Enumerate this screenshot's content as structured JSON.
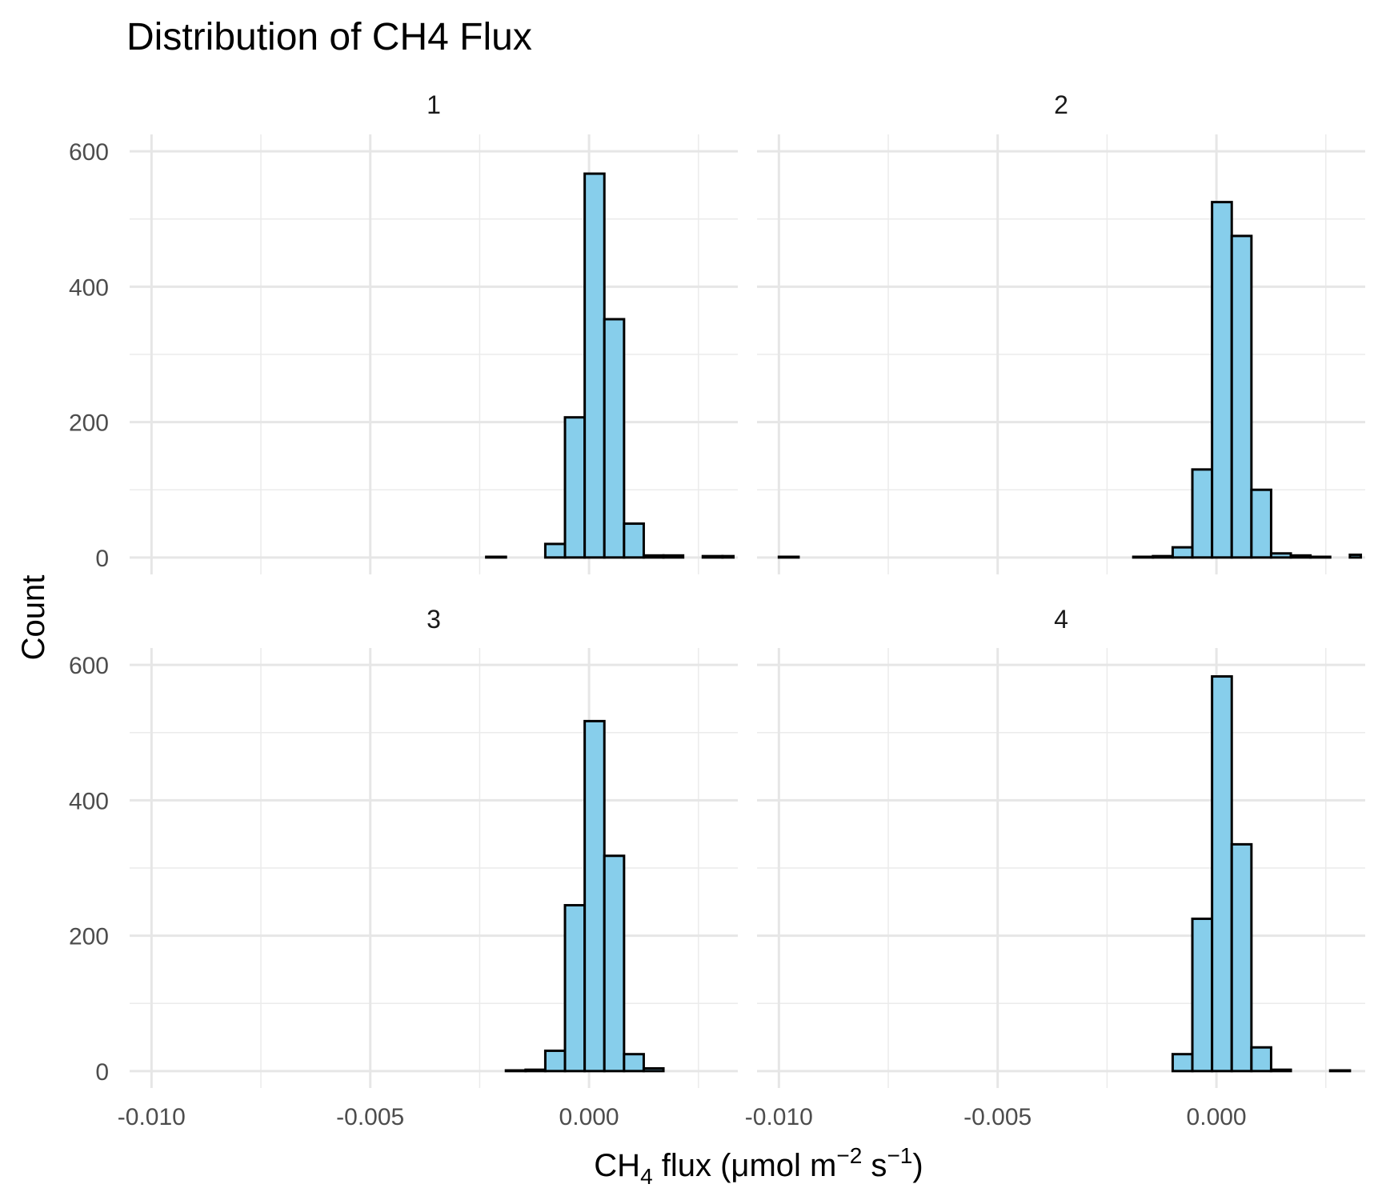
{
  "chart_data": {
    "type": "bar",
    "title": "Distribution of CH4 Flux",
    "xlabel_main": "CH",
    "xlabel_sub": "4",
    "xlabel_rest1": " flux (μmol m",
    "xlabel_sup1": "−2",
    "xlabel_rest2": " s",
    "xlabel_sup2": "−1",
    "xlabel_close": ")",
    "ylabel": "Count",
    "xlim": [
      -0.0105,
      0.0034
    ],
    "ylim": [
      -25,
      625
    ],
    "x_ticks": [
      -0.01,
      -0.005,
      0.0
    ],
    "x_tick_labels": [
      "-0.010",
      "-0.005",
      "0.000"
    ],
    "y_ticks": [
      0,
      200,
      400,
      600
    ],
    "y_tick_labels": [
      "0",
      "200",
      "400",
      "600"
    ],
    "x_minor_ticks": [
      -0.0075,
      -0.0025,
      0.0025
    ],
    "y_minor_ticks": [
      100,
      300,
      500
    ],
    "bar_fill": "#87CEEB",
    "bar_stroke": "#000000",
    "grid": true,
    "bin_edges": [
      -0.01,
      -0.00955,
      -0.0091,
      -0.00865,
      -0.0082,
      -0.00775,
      -0.0073,
      -0.00685,
      -0.0064,
      -0.00595,
      -0.0055,
      -0.00505,
      -0.0046,
      -0.00415,
      -0.0037,
      -0.00325,
      -0.0028,
      -0.00235,
      -0.0019,
      -0.00145,
      -0.001,
      -0.00055,
      -0.0001,
      0.00035,
      0.0008,
      0.00125,
      0.0017,
      0.00215,
      0.0026,
      0.00305,
      0.0033
    ],
    "panels": [
      {
        "label": "1",
        "counts": [
          0,
          0,
          0,
          0,
          0,
          0,
          0,
          0,
          0,
          0,
          0,
          0,
          0,
          0,
          0,
          0,
          0,
          1,
          0,
          0,
          20,
          207,
          567,
          352,
          50,
          3,
          3,
          0,
          2,
          2
        ]
      },
      {
        "label": "2",
        "counts": [
          1,
          0,
          0,
          0,
          0,
          0,
          0,
          0,
          0,
          0,
          0,
          0,
          0,
          0,
          0,
          0,
          0,
          0,
          1,
          2,
          15,
          130,
          525,
          475,
          100,
          6,
          3,
          1,
          0,
          4
        ]
      },
      {
        "label": "3",
        "counts": [
          0,
          0,
          0,
          0,
          0,
          0,
          0,
          0,
          0,
          0,
          0,
          0,
          0,
          0,
          0,
          0,
          0,
          0,
          1,
          2,
          30,
          245,
          517,
          318,
          25,
          4,
          0,
          0,
          0,
          0
        ]
      },
      {
        "label": "4",
        "counts": [
          0,
          0,
          0,
          0,
          0,
          0,
          0,
          0,
          0,
          0,
          0,
          0,
          0,
          0,
          0,
          0,
          0,
          0,
          0,
          0,
          25,
          225,
          583,
          335,
          35,
          2,
          0,
          0,
          1,
          0
        ]
      }
    ]
  }
}
